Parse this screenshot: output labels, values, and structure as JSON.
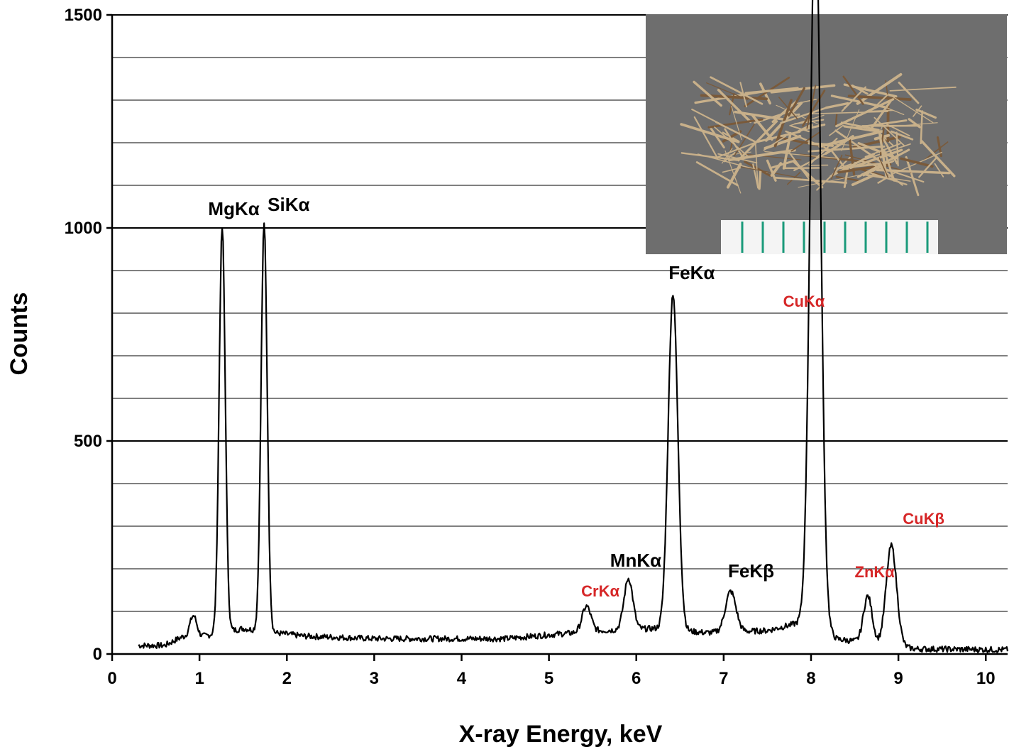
{
  "chart_data": {
    "type": "line",
    "title": "",
    "xlabel": "X-ray Energy, keV",
    "ylabel": "Counts",
    "xlim": [
      0,
      10.25
    ],
    "ylim": [
      0,
      1500
    ],
    "x_ticks": [
      0,
      1,
      2,
      3,
      4,
      5,
      6,
      7,
      8,
      9,
      10
    ],
    "y_ticks": [
      0,
      500,
      1000,
      1500
    ],
    "y_minor_gridlines_step": 100,
    "grid": "horizontal",
    "series_color": "#000000",
    "start_x": 0.3,
    "step_x": 0.01,
    "baseline_points": [
      [
        0.3,
        20
      ],
      [
        0.6,
        20
      ],
      [
        0.8,
        40
      ],
      [
        1.0,
        40
      ],
      [
        1.5,
        60
      ],
      [
        1.85,
        50
      ],
      [
        2.2,
        42
      ],
      [
        3.0,
        36
      ],
      [
        4.5,
        36
      ],
      [
        5.0,
        45
      ],
      [
        5.6,
        55
      ],
      [
        6.2,
        60
      ],
      [
        6.8,
        50
      ],
      [
        7.5,
        55
      ],
      [
        8.0,
        80
      ],
      [
        8.3,
        35
      ],
      [
        9.2,
        12
      ],
      [
        10.25,
        10
      ]
    ],
    "peaks": [
      {
        "label": "",
        "energy": 0.93,
        "height": 50,
        "width": 0.04
      },
      {
        "label": "MgKα",
        "energy": 1.26,
        "height": 950,
        "width": 0.035
      },
      {
        "label": "SiKα",
        "energy": 1.74,
        "height": 955,
        "width": 0.035
      },
      {
        "label": "CrKα",
        "energy": 5.43,
        "height": 60,
        "width": 0.05
      },
      {
        "label": "MnKα",
        "energy": 5.91,
        "height": 120,
        "width": 0.05
      },
      {
        "label": "FeKα",
        "energy": 6.42,
        "height": 790,
        "width": 0.055
      },
      {
        "label": "FeKβ",
        "energy": 7.08,
        "height": 95,
        "width": 0.06
      },
      {
        "label": "CuKα",
        "energy": 8.05,
        "height": 1700,
        "width": 0.06
      },
      {
        "label": "ZnKα",
        "energy": 8.65,
        "height": 110,
        "width": 0.05
      },
      {
        "label": "CuKβ",
        "energy": 8.92,
        "height": 235,
        "width": 0.06
      }
    ],
    "peak_labels": [
      {
        "text": "MgKα",
        "x": 1.1,
        "y": 1030,
        "color": "#000000"
      },
      {
        "text": "SiKα",
        "x": 1.78,
        "y": 1040,
        "color": "#000000"
      },
      {
        "text": "FeKα",
        "x": 6.37,
        "y": 880,
        "color": "#000000"
      },
      {
        "text": "CuKα",
        "x": 7.68,
        "y": 815,
        "color": "#d62728"
      },
      {
        "text": "MnKα",
        "x": 5.7,
        "y": 205,
        "color": "#000000"
      },
      {
        "text": "FeKβ",
        "x": 7.05,
        "y": 180,
        "color": "#000000"
      },
      {
        "text": "CrKα",
        "x": 5.37,
        "y": 135,
        "color": "#d62728"
      },
      {
        "text": "ZnKα",
        "x": 8.5,
        "y": 180,
        "color": "#d62728"
      },
      {
        "text": "CuKβ",
        "x": 9.05,
        "y": 305,
        "color": "#d62728"
      }
    ]
  },
  "inset": {
    "description_icon": "fiber-sample-photo",
    "background_color": "#6e6e6e",
    "fiber_color": "#c8b08a",
    "ruler_color": "#1a9a7a"
  }
}
